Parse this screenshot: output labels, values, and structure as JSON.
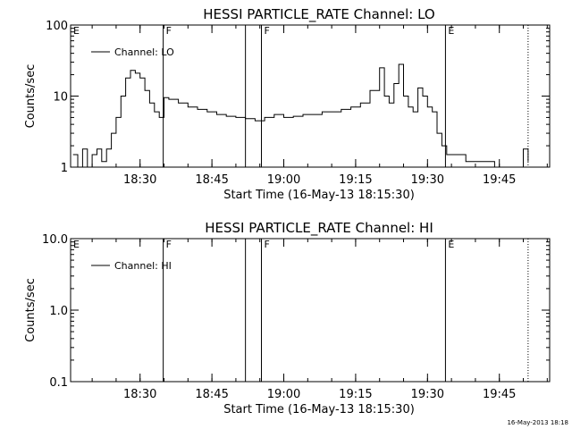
{
  "footer_stamp": "16-May-2013 18:18",
  "chart_data": [
    {
      "type": "line",
      "title": "HESSI PARTICLE_RATE Channel: LO",
      "xlabel": "Start Time (16-May-13 18:15:30)",
      "ylabel": "Counts/sec",
      "yscale": "log",
      "ylim": [
        1,
        100
      ],
      "xlim": [
        "18:15:30",
        "19:55:30"
      ],
      "y_tick_labels": [
        "1",
        "10",
        "100"
      ],
      "x_tick_labels": [
        "18:30",
        "18:45",
        "19:00",
        "19:15",
        "19:30",
        "19:45"
      ],
      "legend": {
        "position": "top-left",
        "entries": [
          "Channel: LO"
        ]
      },
      "markers": [
        {
          "label": "E",
          "time": "18:15:30",
          "style": "solid"
        },
        {
          "label": "F",
          "time": "18:34:50",
          "style": "solid"
        },
        {
          "label": "",
          "time": "18:52:00",
          "style": "solid"
        },
        {
          "label": "F",
          "time": "18:55:20",
          "style": "solid"
        },
        {
          "label": "E",
          "time": "19:33:45",
          "style": "solid"
        },
        {
          "label": "",
          "time": "19:51:00",
          "style": "dotted"
        }
      ],
      "series": [
        {
          "name": "Channel: LO",
          "x": [
            "18:16",
            "18:17",
            "18:18",
            "18:19",
            "18:20",
            "18:21",
            "18:22",
            "18:23",
            "18:24",
            "18:25",
            "18:26",
            "18:27",
            "18:28",
            "18:29",
            "18:30",
            "18:31",
            "18:32",
            "18:33",
            "18:34",
            "18:35",
            "18:36",
            "18:38",
            "18:40",
            "18:42",
            "18:44",
            "18:46",
            "18:48",
            "18:50",
            "18:52",
            "18:54",
            "18:56",
            "18:58",
            "19:00",
            "19:02",
            "19:04",
            "19:06",
            "19:08",
            "19:10",
            "19:12",
            "19:14",
            "19:16",
            "19:18",
            "19:20",
            "19:21",
            "19:22",
            "19:23",
            "19:24",
            "19:25",
            "19:26",
            "19:27",
            "19:28",
            "19:29",
            "19:30",
            "19:31",
            "19:32",
            "19:33",
            "19:34",
            "19:36",
            "19:38",
            "19:40",
            "19:42",
            "19:44",
            "19:46",
            "19:48",
            "19:50",
            "19:51"
          ],
          "y": [
            1.5,
            1,
            1.8,
            1,
            1.5,
            1.8,
            1.2,
            1.8,
            3,
            5,
            10,
            18,
            23,
            21,
            18,
            12,
            8,
            6,
            5,
            9.5,
            9,
            8,
            7,
            6.5,
            6,
            5.5,
            5.2,
            5,
            4.8,
            4.5,
            5,
            5.5,
            5,
            5.2,
            5.5,
            5.5,
            6,
            6,
            6.5,
            7,
            8,
            12,
            25,
            10,
            8,
            15,
            28,
            10,
            7,
            6,
            13,
            10,
            7,
            6,
            3,
            2,
            1.5,
            1.5,
            1.2,
            1.2,
            1.2,
            1,
            1,
            1,
            1.8,
            1.2
          ]
        }
      ]
    },
    {
      "type": "line",
      "title": "HESSI PARTICLE_RATE Channel: HI",
      "xlabel": "Start Time (16-May-13 18:15:30)",
      "ylabel": "Counts/sec",
      "yscale": "log",
      "ylim": [
        0.1,
        10
      ],
      "xlim": [
        "18:15:30",
        "19:55:30"
      ],
      "y_tick_labels": [
        "0.1",
        "1.0",
        "10.0"
      ],
      "x_tick_labels": [
        "18:30",
        "18:45",
        "19:00",
        "19:15",
        "19:30",
        "19:45"
      ],
      "legend": {
        "position": "top-left",
        "entries": [
          "Channel: HI"
        ]
      },
      "markers": [
        {
          "label": "E",
          "time": "18:15:30",
          "style": "solid"
        },
        {
          "label": "F",
          "time": "18:34:50",
          "style": "solid"
        },
        {
          "label": "",
          "time": "18:52:00",
          "style": "solid"
        },
        {
          "label": "F",
          "time": "18:55:20",
          "style": "solid"
        },
        {
          "label": "E",
          "time": "19:33:45",
          "style": "solid"
        },
        {
          "label": "",
          "time": "19:51:00",
          "style": "dotted"
        }
      ],
      "series": [
        {
          "name": "Channel: HI",
          "x": [],
          "y": []
        }
      ]
    }
  ]
}
